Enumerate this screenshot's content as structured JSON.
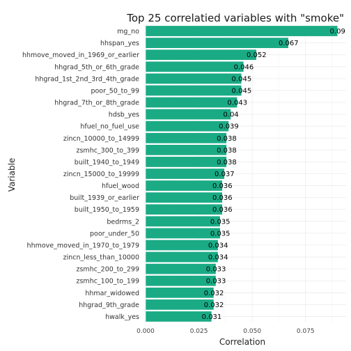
{
  "chart_data": {
    "type": "bar",
    "orientation": "horizontal",
    "title": "Top 25 correlatied variables with \"smoke\"",
    "xlabel": "Correlation",
    "ylabel": "Variable",
    "xlim": [
      0,
      0.094
    ],
    "x_ticks": [
      0,
      0.025,
      0.05,
      0.075
    ],
    "x_tick_labels": [
      "0.000",
      "0.025",
      "0.050",
      "0.075"
    ],
    "grid": true,
    "bar_color": "#1aab85",
    "categories": [
      "mg_no",
      "hhspan_yes",
      "hhmove_moved_in_1969_or_earlier",
      "hhgrad_5th_or_6th_grade",
      "hhgrad_1st_2nd_3rd_4th_grade",
      "poor_50_to_99",
      "hhgrad_7th_or_8th_grade",
      "hdsb_yes",
      "hfuel_no_fuel_use",
      "zincn_10000_to_14999",
      "zsmhc_300_to_399",
      "built_1940_to_1949",
      "zincn_15000_to_19999",
      "hfuel_wood",
      "built_1939_or_earlier",
      "built_1950_to_1959",
      "bedrms_2",
      "poor_under_50",
      "hhmove_moved_in_1970_to_1979",
      "zincn_less_than_10000",
      "zsmhc_200_to_299",
      "zsmhc_100_to_199",
      "hhmar_widowed",
      "hhgrad_9th_grade",
      "hwalk_yes"
    ],
    "values": [
      0.09,
      0.067,
      0.052,
      0.046,
      0.045,
      0.045,
      0.043,
      0.04,
      0.039,
      0.038,
      0.038,
      0.038,
      0.037,
      0.036,
      0.036,
      0.036,
      0.035,
      0.035,
      0.034,
      0.034,
      0.033,
      0.033,
      0.032,
      0.032,
      0.031
    ],
    "value_labels": [
      "0.09",
      "0.067",
      "0.052",
      "0.046",
      "0.045",
      "0.045",
      "0.043",
      "0.04",
      "0.039",
      "0.038",
      "0.038",
      "0.038",
      "0.037",
      "0.036",
      "0.036",
      "0.036",
      "0.035",
      "0.035",
      "0.034",
      "0.034",
      "0.033",
      "0.033",
      "0.032",
      "0.032",
      "0.031"
    ]
  }
}
